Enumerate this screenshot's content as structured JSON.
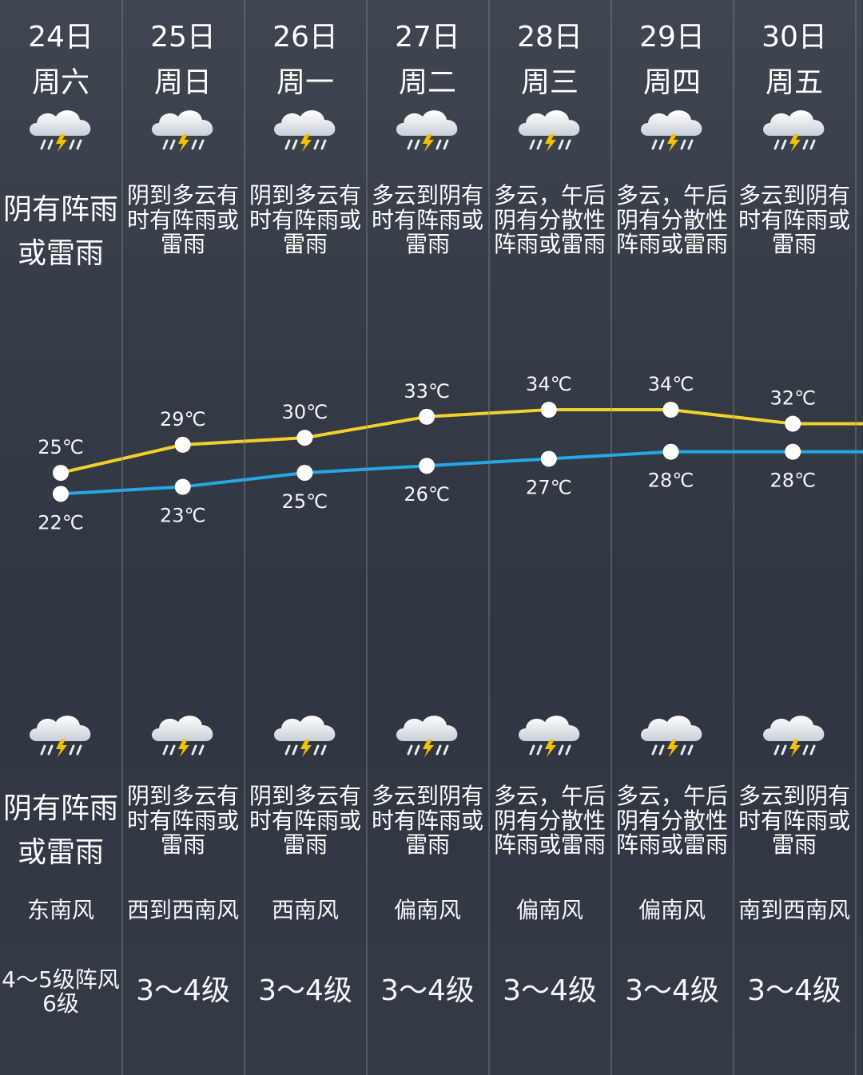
{
  "days": [
    {
      "date": "24日",
      "weekday": "周六",
      "day_desc": "阴有阵雨或雷雨",
      "night_desc": "阴有阵雨或雷雨",
      "wind_dir": "东南风",
      "wind_level": "4～5级阵风6级",
      "high": "25℃",
      "low": "22℃",
      "icon": "thunderstorm-cloud-icon"
    },
    {
      "date": "25日",
      "weekday": "周日",
      "day_desc": "阴到多云有时有阵雨或雷雨",
      "night_desc": "阴到多云有时有阵雨或雷雨",
      "wind_dir": "西到西南风",
      "wind_level": "3～4级",
      "high": "29℃",
      "low": "23℃",
      "icon": "thunderstorm-cloud-icon"
    },
    {
      "date": "26日",
      "weekday": "周一",
      "day_desc": "阴到多云有时有阵雨或雷雨",
      "night_desc": "阴到多云有时有阵雨或雷雨",
      "wind_dir": "西南风",
      "wind_level": "3～4级",
      "high": "30℃",
      "low": "25℃",
      "icon": "thunderstorm-cloud-icon"
    },
    {
      "date": "27日",
      "weekday": "周二",
      "day_desc": "多云到阴有时有阵雨或雷雨",
      "night_desc": "多云到阴有时有阵雨或雷雨",
      "wind_dir": "偏南风",
      "wind_level": "3～4级",
      "high": "33℃",
      "low": "26℃",
      "icon": "thunderstorm-cloud-icon"
    },
    {
      "date": "28日",
      "weekday": "周三",
      "day_desc": "多云，午后阴有分散性阵雨或雷雨",
      "night_desc": "多云，午后阴有分散性阵雨或雷雨",
      "wind_dir": "偏南风",
      "wind_level": "3～4级",
      "high": "34℃",
      "low": "27℃",
      "icon": "thunderstorm-cloud-icon"
    },
    {
      "date": "29日",
      "weekday": "周四",
      "day_desc": "多云，午后阴有分散性阵雨或雷雨",
      "night_desc": "多云，午后阴有分散性阵雨或雷雨",
      "wind_dir": "偏南风",
      "wind_level": "3～4级",
      "high": "34℃",
      "low": "28℃",
      "icon": "thunderstorm-cloud-icon"
    },
    {
      "date": "30日",
      "weekday": "周五",
      "day_desc": "多云到阴有时有阵雨或雷雨",
      "night_desc": "多云到阴有时有阵雨或雷雨",
      "wind_dir": "南到西南风",
      "wind_level": "3～4级",
      "high": "32℃",
      "low": "28℃",
      "icon": "thunderstorm-cloud-icon"
    }
  ],
  "chart_data": {
    "type": "line",
    "categories": [
      "24日",
      "25日",
      "26日",
      "27日",
      "28日",
      "29日",
      "30日"
    ],
    "series": [
      {
        "values": [
          25,
          29,
          30,
          33,
          34,
          34,
          32
        ]
      },
      {
        "values": [
          22,
          23,
          25,
          26,
          27,
          28,
          28
        ]
      }
    ],
    "colors": {
      "high": "#f2d02a",
      "low": "#24a8e6",
      "point": "#ffffff"
    }
  }
}
